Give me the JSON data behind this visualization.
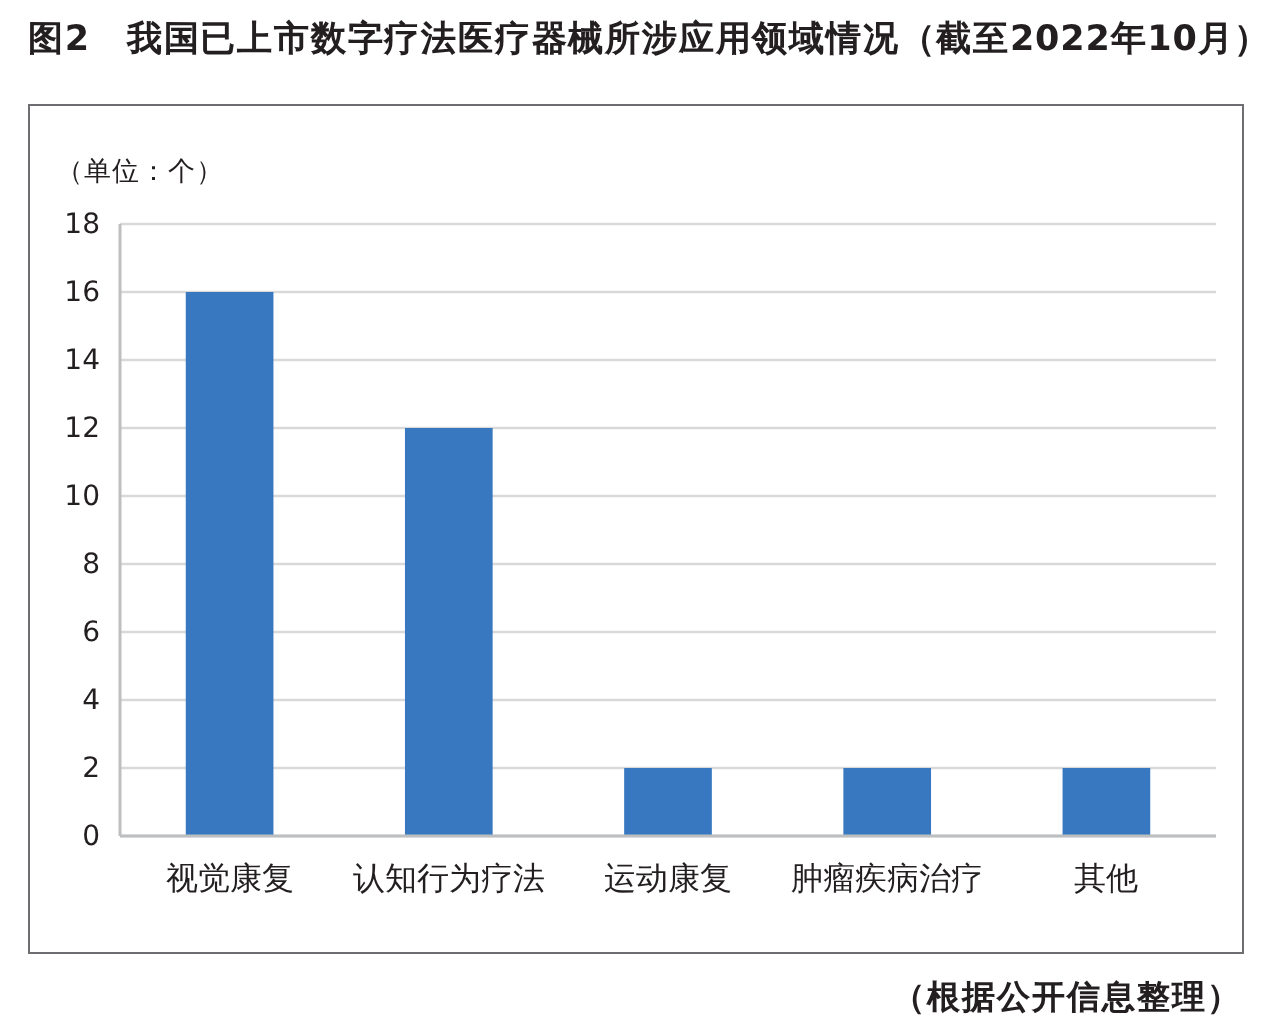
{
  "chart_data": {
    "type": "bar",
    "title": "图2　我国已上市数字疗法医疗器械所涉应用领域情况（截至2022年10月）",
    "ylabel": "（单位：个）",
    "annotations": [
      "（根据公开信息整理）"
    ],
    "categories": [
      "视觉康复",
      "认知行为疗法",
      "运动康复",
      "肿瘤疾病治疗",
      "其他"
    ],
    "values": [
      16,
      12,
      2,
      2,
      2
    ],
    "color": "#3878c0",
    "ylim": [
      0,
      18
    ],
    "yticks": [
      0,
      2,
      4,
      6,
      8,
      10,
      12,
      14,
      16,
      18
    ],
    "grid": "y"
  }
}
